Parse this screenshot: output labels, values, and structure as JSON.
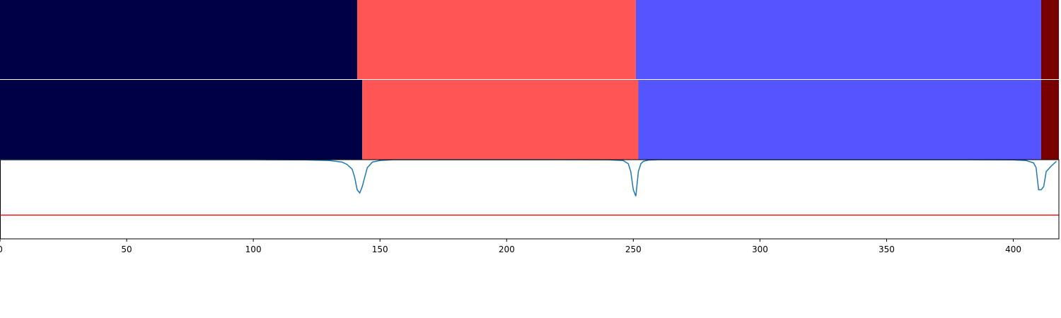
{
  "chart_data": [
    {
      "type": "bar",
      "panel": "top-segmentation",
      "segments": [
        {
          "start": 0,
          "end": 141,
          "color": "#000046"
        },
        {
          "start": 141,
          "end": 251,
          "color": "#ff5555"
        },
        {
          "start": 251,
          "end": 411,
          "color": "#5555ff"
        },
        {
          "start": 411,
          "end": 418,
          "color": "#780000"
        }
      ]
    },
    {
      "type": "bar",
      "panel": "middle-segmentation",
      "segments": [
        {
          "start": 0,
          "end": 143,
          "color": "#000046"
        },
        {
          "start": 143,
          "end": 252,
          "color": "#ff5555"
        },
        {
          "start": 252,
          "end": 411,
          "color": "#5555ff"
        },
        {
          "start": 411,
          "end": 418,
          "color": "#780000"
        }
      ]
    },
    {
      "type": "line",
      "panel": "bottom-signal",
      "xlim": [
        0,
        418
      ],
      "ylim": [
        0,
        1
      ],
      "xticks": [
        0,
        50,
        100,
        150,
        200,
        250,
        300,
        350,
        400
      ],
      "grid": false,
      "series": [
        {
          "color": "#1f77b4",
          "x": [
            0,
            20,
            40,
            60,
            80,
            100,
            120,
            130,
            135,
            137,
            139,
            140,
            141,
            142,
            143,
            144,
            145,
            147,
            150,
            155,
            160,
            180,
            200,
            220,
            240,
            246,
            248,
            249,
            250,
            251,
            252,
            253,
            254,
            256,
            260,
            280,
            300,
            320,
            340,
            360,
            380,
            400,
            405,
            408,
            409,
            410,
            411,
            412,
            413,
            415,
            417
          ],
          "y": [
            1.0,
            1.0,
            1.0,
            1.0,
            1.0,
            1.0,
            0.998,
            0.99,
            0.97,
            0.94,
            0.88,
            0.78,
            0.62,
            0.58,
            0.66,
            0.78,
            0.9,
            0.97,
            0.99,
            1.0,
            1.0,
            1.0,
            1.0,
            1.0,
            0.999,
            0.99,
            0.95,
            0.85,
            0.62,
            0.54,
            0.85,
            0.95,
            0.98,
            0.995,
            1.0,
            1.0,
            1.0,
            1.0,
            1.0,
            1.0,
            1.0,
            0.998,
            0.99,
            0.96,
            0.9,
            0.62,
            0.62,
            0.66,
            0.85,
            0.92,
            0.98
          ]
        },
        {
          "color": "#e31a1c",
          "x": [
            0,
            418
          ],
          "y": [
            0.3,
            0.3
          ]
        }
      ]
    }
  ]
}
